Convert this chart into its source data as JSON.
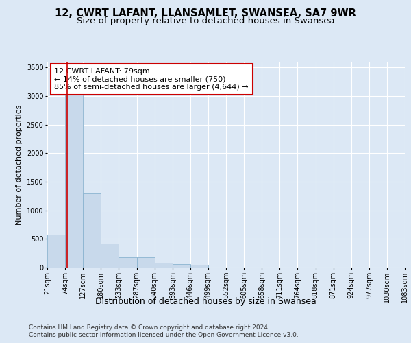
{
  "title": "12, CWRT LAFANT, LLANSAMLET, SWANSEA, SA7 9WR",
  "subtitle": "Size of property relative to detached houses in Swansea",
  "xlabel": "Distribution of detached houses by size in Swansea",
  "ylabel": "Number of detached properties",
  "bin_labels": [
    "21sqm",
    "74sqm",
    "127sqm",
    "180sqm",
    "233sqm",
    "287sqm",
    "340sqm",
    "393sqm",
    "446sqm",
    "499sqm",
    "552sqm",
    "605sqm",
    "658sqm",
    "711sqm",
    "764sqm",
    "818sqm",
    "871sqm",
    "924sqm",
    "977sqm",
    "1030sqm",
    "1083sqm"
  ],
  "bin_edges": [
    21,
    74,
    127,
    180,
    233,
    287,
    340,
    393,
    446,
    499,
    552,
    605,
    658,
    711,
    764,
    818,
    871,
    924,
    977,
    1030,
    1083
  ],
  "bar_heights": [
    580,
    3280,
    1300,
    420,
    185,
    175,
    90,
    55,
    45,
    5,
    2,
    1,
    0,
    0,
    0,
    0,
    0,
    0,
    0,
    0
  ],
  "bar_color": "#c8d9eb",
  "bar_edge_color": "#8bb4d0",
  "property_size": 79,
  "property_line_color": "#cc0000",
  "annotation_text": "12 CWRT LAFANT: 79sqm\n← 14% of detached houses are smaller (750)\n85% of semi-detached houses are larger (4,644) →",
  "annotation_box_facecolor": "#ffffff",
  "annotation_box_edgecolor": "#cc0000",
  "ylim": [
    0,
    3600
  ],
  "yticks": [
    0,
    500,
    1000,
    1500,
    2000,
    2500,
    3000,
    3500
  ],
  "background_color": "#dce8f5",
  "plot_background_color": "#dce8f5",
  "grid_color": "#ffffff",
  "footer_line1": "Contains HM Land Registry data © Crown copyright and database right 2024.",
  "footer_line2": "Contains public sector information licensed under the Open Government Licence v3.0.",
  "title_fontsize": 10.5,
  "subtitle_fontsize": 9.5,
  "xlabel_fontsize": 9,
  "ylabel_fontsize": 8,
  "tick_fontsize": 7,
  "annotation_fontsize": 8,
  "footer_fontsize": 6.5
}
